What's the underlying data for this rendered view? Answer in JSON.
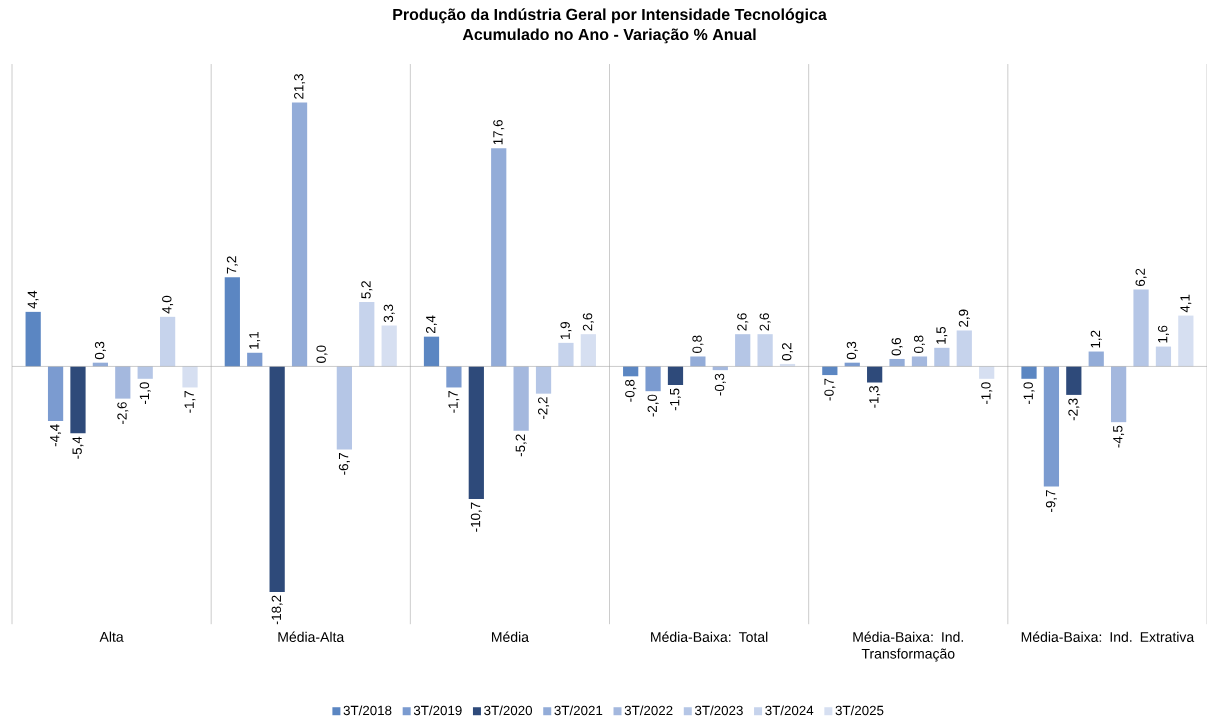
{
  "chart_data": {
    "type": "bar",
    "title": "Produção da Indústria Geral por Intensidade Tecnológica",
    "subtitle": "Acumulado no Ano - Variação % Anual",
    "categories": [
      "Alta",
      "Média-Alta",
      "Média",
      "Média-Baixa: Total",
      "Média-Baixa: Ind. Transformação",
      "Média-Baixa: Ind. Extrativa"
    ],
    "ylim": [
      -20.8,
      24.4
    ],
    "tick_labels": "x",
    "grid": "x",
    "legend": "bottom",
    "series": [
      {
        "name": "3T/2018",
        "color": "#5b86c2",
        "values": [
          4.4,
          7.2,
          2.4,
          -0.8,
          -0.7,
          -1.0
        ],
        "value_labels": [
          "4,4",
          "7,2",
          "2,4",
          "-0,8",
          "-0,7",
          "-1,0"
        ]
      },
      {
        "name": "3T/2019",
        "color": "#7b9bd0",
        "values": [
          -4.4,
          1.1,
          -1.7,
          -2.0,
          0.3,
          -9.7
        ],
        "value_labels": [
          "-4,4",
          "1,1",
          "-1,7",
          "-2,0",
          "0,3",
          "-9,7"
        ]
      },
      {
        "name": "3T/2020",
        "color": "#2e4a7a",
        "values": [
          -5.4,
          -18.2,
          -10.7,
          -1.5,
          -1.3,
          -2.3
        ],
        "value_labels": [
          "-5,4",
          "-18,2",
          "-10,7",
          "-1,5",
          "-1,3",
          "-2,3"
        ]
      },
      {
        "name": "3T/2021",
        "color": "#93acd8",
        "values": [
          0.3,
          21.3,
          17.6,
          0.8,
          0.6,
          1.2
        ],
        "value_labels": [
          "0,3",
          "21,3",
          "17,6",
          "0,8",
          "0,6",
          "1,2"
        ]
      },
      {
        "name": "3T/2022",
        "color": "#a4b8de",
        "values": [
          -2.6,
          0.0,
          -5.2,
          -0.3,
          0.8,
          -4.5
        ],
        "value_labels": [
          "-2,6",
          "0,0",
          "-5,2",
          "-0,3",
          "0,8",
          "-4,5"
        ]
      },
      {
        "name": "3T/2023",
        "color": "#b5c6e6",
        "values": [
          -1.0,
          -6.7,
          -2.2,
          2.6,
          1.5,
          6.2
        ],
        "value_labels": [
          "-1,0",
          "-6,7",
          "-2,2",
          "2,6",
          "1,5",
          "6,2"
        ]
      },
      {
        "name": "3T/2024",
        "color": "#c6d3ec",
        "values": [
          4.0,
          5.2,
          1.9,
          2.6,
          2.9,
          1.6
        ],
        "value_labels": [
          "4,0",
          "5,2",
          "1,9",
          "2,6",
          "2,9",
          "1,6"
        ]
      },
      {
        "name": "3T/2025",
        "color": "#d6dff1",
        "values": [
          -1.7,
          3.3,
          2.6,
          0.2,
          -1.0,
          4.1
        ],
        "value_labels": [
          "-1,7",
          "3,3",
          "2,6",
          "0,2",
          "-1,0",
          "4,1"
        ]
      }
    ]
  }
}
